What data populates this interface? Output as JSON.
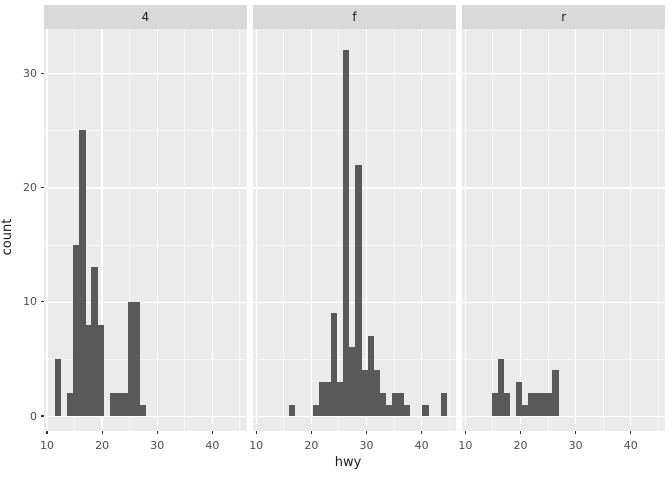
{
  "chart": {
    "x_title": "hwy",
    "y_title": "count"
  },
  "colors": {
    "bar": "#595959",
    "panel_background": "#EBEBEB",
    "strip_background": "#D9D9D9",
    "gridline": "#FFFFFF",
    "tick_label_text": "#4D4D4D",
    "axis_title_text": "#1A1A1A",
    "tick_mark": "#333333"
  },
  "chart_data": {
    "type": "bar",
    "subtype": "faceted-histogram",
    "x_variable": "hwy",
    "y_variable": "count",
    "facet_labels": [
      "4",
      "f",
      "r"
    ],
    "binwidth": 1.1,
    "x_axis": {
      "major_ticks": [
        10,
        20,
        30,
        40
      ],
      "tick_labels": [
        "10",
        "20",
        "30",
        "40"
      ],
      "minor_gridlines": [
        15,
        25,
        35,
        45
      ],
      "range": [
        9.2,
        46.4
      ]
    },
    "y_axis": {
      "major_ticks": [
        0,
        10,
        20,
        30
      ],
      "tick_labels": [
        "0",
        "10",
        "20",
        "30"
      ],
      "minor_gridlines": [
        5,
        15,
        25
      ],
      "range": [
        -1.3,
        33.9
      ]
    },
    "legend": "none",
    "grid": "on",
    "facets": [
      {
        "label": "4",
        "total_count": 103,
        "bins": [
          {
            "center": 12.0,
            "count": 5
          },
          {
            "center": 14.21,
            "count": 2
          },
          {
            "center": 15.31,
            "count": 15
          },
          {
            "center": 16.41,
            "count": 25
          },
          {
            "center": 17.52,
            "count": 8
          },
          {
            "center": 18.62,
            "count": 13
          },
          {
            "center": 19.72,
            "count": 8
          },
          {
            "center": 21.93,
            "count": 2
          },
          {
            "center": 23.03,
            "count": 2
          },
          {
            "center": 24.14,
            "count": 2
          },
          {
            "center": 25.24,
            "count": 10
          },
          {
            "center": 26.34,
            "count": 10
          },
          {
            "center": 27.45,
            "count": 1
          }
        ]
      },
      {
        "label": "f",
        "total_count": 106,
        "bins": [
          {
            "center": 16.41,
            "count": 1
          },
          {
            "center": 20.83,
            "count": 1
          },
          {
            "center": 21.93,
            "count": 3
          },
          {
            "center": 23.03,
            "count": 3
          },
          {
            "center": 24.14,
            "count": 9
          },
          {
            "center": 25.24,
            "count": 3
          },
          {
            "center": 26.34,
            "count": 32
          },
          {
            "center": 27.45,
            "count": 6
          },
          {
            "center": 28.55,
            "count": 22
          },
          {
            "center": 29.66,
            "count": 4
          },
          {
            "center": 30.76,
            "count": 7
          },
          {
            "center": 31.86,
            "count": 4
          },
          {
            "center": 32.97,
            "count": 2
          },
          {
            "center": 34.07,
            "count": 1
          },
          {
            "center": 35.17,
            "count": 2
          },
          {
            "center": 36.28,
            "count": 2
          },
          {
            "center": 37.38,
            "count": 1
          },
          {
            "center": 40.69,
            "count": 1
          },
          {
            "center": 44.0,
            "count": 2
          }
        ]
      },
      {
        "label": "r",
        "total_count": 25,
        "bins": [
          {
            "center": 15.31,
            "count": 2
          },
          {
            "center": 16.41,
            "count": 5
          },
          {
            "center": 17.52,
            "count": 2
          },
          {
            "center": 19.72,
            "count": 3
          },
          {
            "center": 20.83,
            "count": 1
          },
          {
            "center": 21.93,
            "count": 2
          },
          {
            "center": 23.03,
            "count": 2
          },
          {
            "center": 24.14,
            "count": 2
          },
          {
            "center": 25.24,
            "count": 2
          },
          {
            "center": 26.34,
            "count": 4
          }
        ]
      }
    ]
  }
}
